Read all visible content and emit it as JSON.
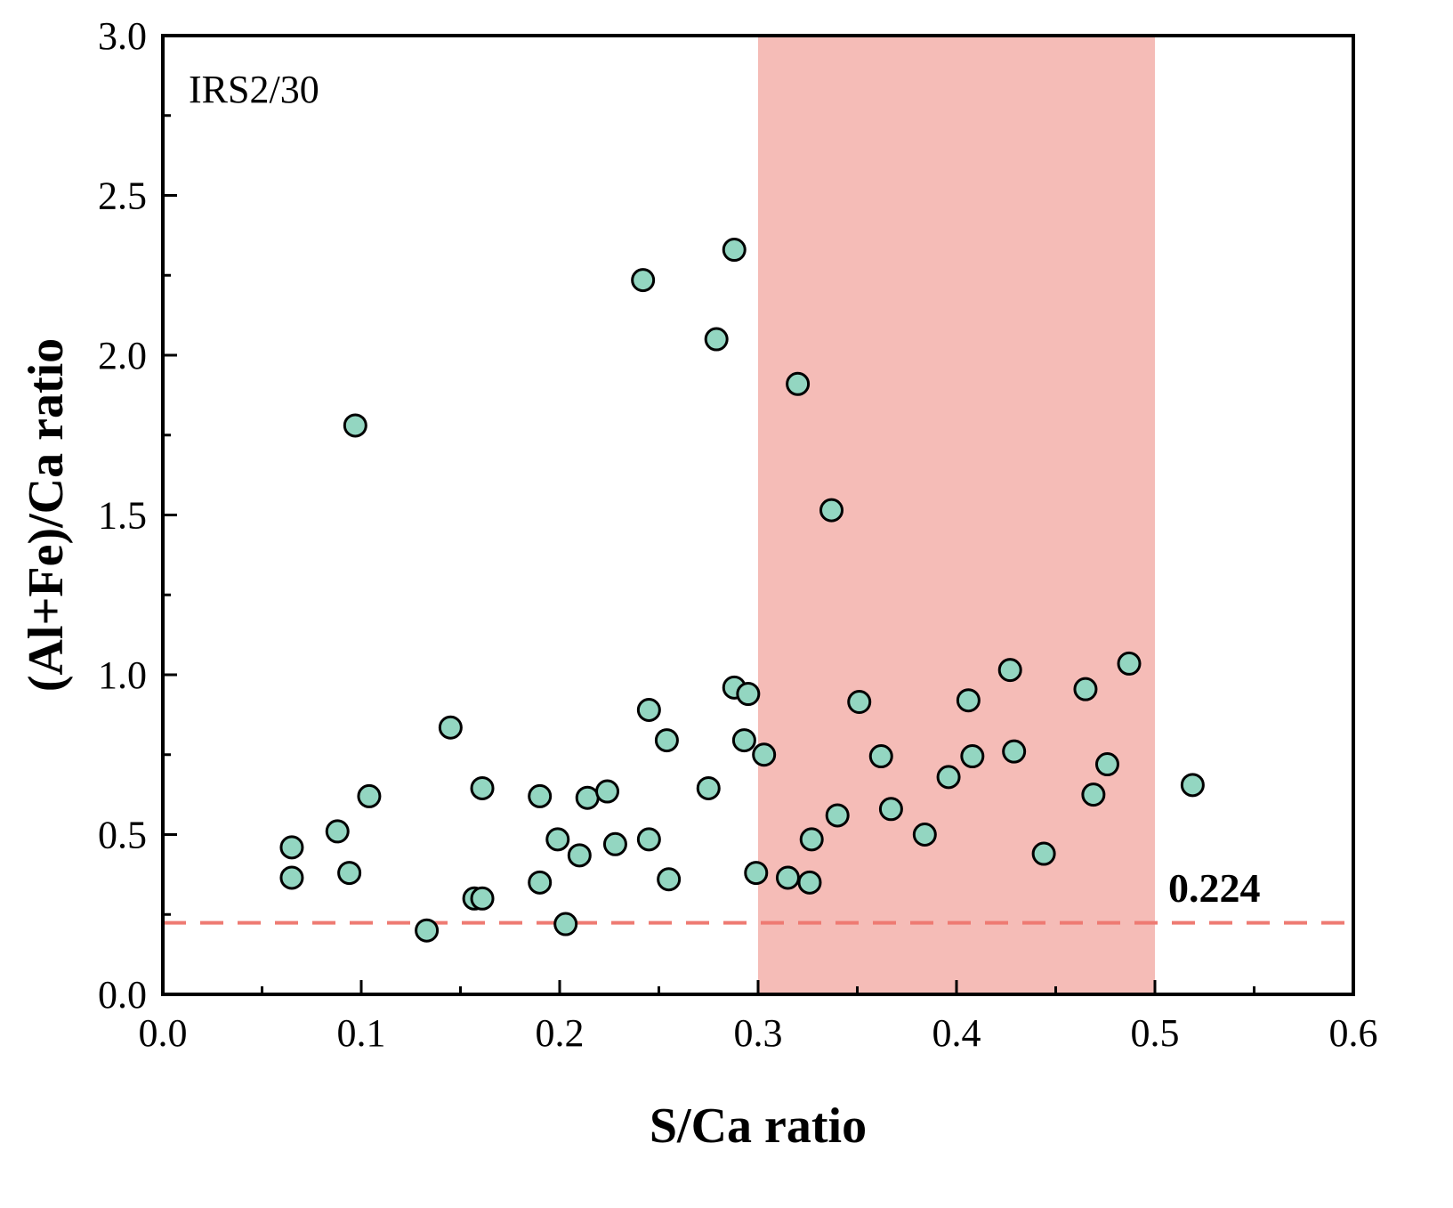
{
  "chart_data": {
    "type": "scatter",
    "title": "",
    "panel_label": "IRS2/30",
    "xlabel": "S/Ca ratio",
    "ylabel": "(Al+Fe)/Ca ratio",
    "xlim": [
      0.0,
      0.6
    ],
    "ylim": [
      0.0,
      3.0
    ],
    "x_ticks": [
      "0.0",
      "0.1",
      "0.2",
      "0.3",
      "0.4",
      "0.5",
      "0.6"
    ],
    "y_ticks": [
      "0.0",
      "0.5",
      "1.0",
      "1.5",
      "2.0",
      "2.5",
      "3.0"
    ],
    "x_minor_step": 0.05,
    "y_minor_step": 0.25,
    "grid": false,
    "shaded_region": {
      "x_from": 0.3,
      "x_to": 0.5,
      "color": "#f5bcb7"
    },
    "reference_line": {
      "y": 0.224,
      "label": "0.224",
      "style": "dashed",
      "color": "#ee7a72"
    },
    "marker": {
      "fill": "#93d6c1",
      "edge": "#000000"
    },
    "series": [
      {
        "name": "IRS2/30",
        "points": [
          [
            0.065,
            0.46
          ],
          [
            0.065,
            0.365
          ],
          [
            0.088,
            0.51
          ],
          [
            0.094,
            0.38
          ],
          [
            0.097,
            1.78
          ],
          [
            0.104,
            0.62
          ],
          [
            0.133,
            0.2
          ],
          [
            0.145,
            0.835
          ],
          [
            0.157,
            0.3
          ],
          [
            0.161,
            0.3
          ],
          [
            0.161,
            0.645
          ],
          [
            0.19,
            0.35
          ],
          [
            0.19,
            0.62
          ],
          [
            0.199,
            0.485
          ],
          [
            0.203,
            0.22
          ],
          [
            0.21,
            0.435
          ],
          [
            0.214,
            0.615
          ],
          [
            0.224,
            0.635
          ],
          [
            0.228,
            0.47
          ],
          [
            0.242,
            2.235
          ],
          [
            0.245,
            0.485
          ],
          [
            0.245,
            0.89
          ],
          [
            0.254,
            0.795
          ],
          [
            0.255,
            0.36
          ],
          [
            0.275,
            0.645
          ],
          [
            0.279,
            2.05
          ],
          [
            0.288,
            2.33
          ],
          [
            0.288,
            0.96
          ],
          [
            0.293,
            0.795
          ],
          [
            0.295,
            0.94
          ],
          [
            0.299,
            0.38
          ],
          [
            0.303,
            0.75
          ],
          [
            0.315,
            0.365
          ],
          [
            0.32,
            1.91
          ],
          [
            0.326,
            0.35
          ],
          [
            0.327,
            0.485
          ],
          [
            0.337,
            1.515
          ],
          [
            0.34,
            0.56
          ],
          [
            0.351,
            0.915
          ],
          [
            0.362,
            0.745
          ],
          [
            0.367,
            0.58
          ],
          [
            0.384,
            0.5
          ],
          [
            0.396,
            0.68
          ],
          [
            0.406,
            0.92
          ],
          [
            0.408,
            0.745
          ],
          [
            0.427,
            1.015
          ],
          [
            0.429,
            0.76
          ],
          [
            0.444,
            0.44
          ],
          [
            0.465,
            0.955
          ],
          [
            0.469,
            0.625
          ],
          [
            0.476,
            0.72
          ],
          [
            0.487,
            1.035
          ],
          [
            0.519,
            0.655
          ]
        ]
      }
    ]
  }
}
